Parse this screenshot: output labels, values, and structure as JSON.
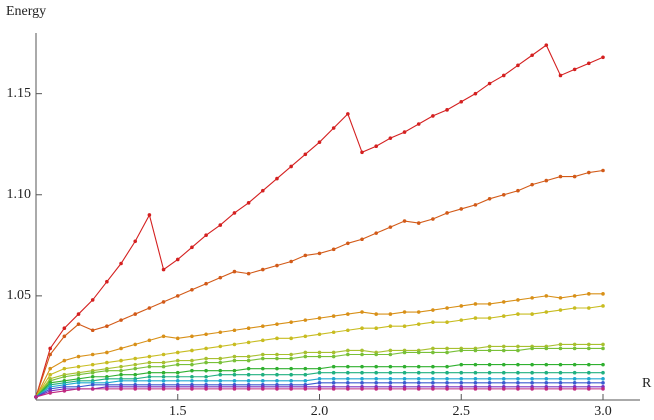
{
  "chart_data": {
    "type": "line",
    "ylabel": "Energy",
    "xlabel": "R",
    "xlim": [
      1.0,
      3.0
    ],
    "ylim": [
      0.9985,
      1.18
    ],
    "xticks": [
      1.5,
      {
        "value": 2,
        "label": "2.0"
      },
      2.5,
      {
        "value": 3,
        "label": "3.0"
      }
    ],
    "yticks": [
      1.05,
      {
        "value": 1.1,
        "label": "1.10"
      },
      1.15
    ],
    "x": [
      1.0,
      1.05,
      1.1,
      1.15,
      1.2,
      1.25,
      1.3,
      1.35,
      1.4,
      1.45,
      1.5,
      1.55,
      1.6,
      1.65,
      1.7,
      1.75,
      1.8,
      1.85,
      1.9,
      1.95,
      2.0,
      2.05,
      2.1,
      2.15,
      2.2,
      2.25,
      2.3,
      2.35,
      2.4,
      2.45,
      2.5,
      2.55,
      2.6,
      2.65,
      2.7,
      2.75,
      2.8,
      2.85,
      2.9,
      2.95,
      3.0
    ],
    "series": [
      {
        "color": "#d42020",
        "values": [
          1.0,
          1.024,
          1.034,
          1.041,
          1.048,
          1.057,
          1.066,
          1.077,
          1.09,
          1.063,
          1.068,
          1.074,
          1.08,
          1.085,
          1.091,
          1.096,
          1.102,
          1.108,
          1.114,
          1.12,
          1.126,
          1.133,
          1.14,
          1.121,
          1.124,
          1.128,
          1.131,
          1.135,
          1.139,
          1.142,
          1.146,
          1.15,
          1.155,
          1.159,
          1.164,
          1.169,
          1.174,
          1.159,
          1.162,
          1.165,
          1.168
        ]
      },
      {
        "color": "#d25a18",
        "values": [
          1.0,
          1.021,
          1.03,
          1.036,
          1.033,
          1.035,
          1.038,
          1.041,
          1.044,
          1.047,
          1.05,
          1.053,
          1.056,
          1.059,
          1.062,
          1.061,
          1.063,
          1.065,
          1.067,
          1.07,
          1.071,
          1.073,
          1.076,
          1.078,
          1.081,
          1.084,
          1.087,
          1.086,
          1.088,
          1.091,
          1.093,
          1.095,
          1.098,
          1.1,
          1.102,
          1.105,
          1.107,
          1.109,
          1.109,
          1.111,
          1.112
        ]
      },
      {
        "color": "#d89018",
        "values": [
          1.0,
          1.014,
          1.018,
          1.02,
          1.021,
          1.022,
          1.024,
          1.026,
          1.028,
          1.03,
          1.029,
          1.03,
          1.031,
          1.032,
          1.033,
          1.034,
          1.035,
          1.036,
          1.037,
          1.038,
          1.039,
          1.04,
          1.041,
          1.042,
          1.041,
          1.041,
          1.042,
          1.042,
          1.043,
          1.044,
          1.045,
          1.046,
          1.046,
          1.047,
          1.048,
          1.049,
          1.05,
          1.049,
          1.05,
          1.051,
          1.051
        ]
      },
      {
        "color": "#c8bc20",
        "values": [
          1.0,
          1.011,
          1.014,
          1.015,
          1.016,
          1.017,
          1.018,
          1.019,
          1.02,
          1.021,
          1.022,
          1.023,
          1.024,
          1.025,
          1.026,
          1.027,
          1.028,
          1.029,
          1.029,
          1.03,
          1.031,
          1.032,
          1.033,
          1.034,
          1.034,
          1.035,
          1.035,
          1.036,
          1.037,
          1.037,
          1.038,
          1.039,
          1.039,
          1.04,
          1.041,
          1.041,
          1.042,
          1.043,
          1.044,
          1.044,
          1.045
        ]
      },
      {
        "color": "#a8c030",
        "values": [
          1.0,
          1.009,
          1.011,
          1.012,
          1.013,
          1.014,
          1.015,
          1.016,
          1.017,
          1.017,
          1.018,
          1.018,
          1.019,
          1.019,
          1.02,
          1.02,
          1.021,
          1.021,
          1.021,
          1.022,
          1.022,
          1.022,
          1.023,
          1.023,
          1.022,
          1.023,
          1.023,
          1.023,
          1.024,
          1.024,
          1.024,
          1.024,
          1.025,
          1.025,
          1.025,
          1.025,
          1.025,
          1.026,
          1.026,
          1.026,
          1.026
        ]
      },
      {
        "color": "#78c038",
        "values": [
          1.0,
          1.008,
          1.01,
          1.011,
          1.012,
          1.013,
          1.013,
          1.014,
          1.015,
          1.015,
          1.016,
          1.016,
          1.017,
          1.017,
          1.018,
          1.018,
          1.019,
          1.019,
          1.019,
          1.02,
          1.02,
          1.02,
          1.021,
          1.021,
          1.021,
          1.021,
          1.022,
          1.022,
          1.022,
          1.022,
          1.023,
          1.023,
          1.023,
          1.023,
          1.023,
          1.024,
          1.024,
          1.024,
          1.024,
          1.024,
          1.024
        ]
      },
      {
        "color": "#30b030",
        "values": [
          1.0,
          1.007,
          1.008,
          1.009,
          1.01,
          1.01,
          1.011,
          1.011,
          1.012,
          1.012,
          1.012,
          1.013,
          1.013,
          1.013,
          1.013,
          1.014,
          1.014,
          1.014,
          1.014,
          1.014,
          1.014,
          1.015,
          1.015,
          1.015,
          1.015,
          1.015,
          1.015,
          1.015,
          1.015,
          1.015,
          1.016,
          1.016,
          1.016,
          1.016,
          1.016,
          1.016,
          1.016,
          1.016,
          1.016,
          1.016,
          1.016
        ]
      },
      {
        "color": "#20b080",
        "values": [
          1.0,
          1.006,
          1.007,
          1.008,
          1.008,
          1.009,
          1.009,
          1.009,
          1.01,
          1.01,
          1.01,
          1.01,
          1.01,
          1.011,
          1.011,
          1.011,
          1.011,
          1.011,
          1.011,
          1.011,
          1.012,
          1.012,
          1.012,
          1.012,
          1.012,
          1.012,
          1.012,
          1.012,
          1.012,
          1.012,
          1.012,
          1.012,
          1.012,
          1.012,
          1.012,
          1.012,
          1.012,
          1.012,
          1.012,
          1.012,
          1.012
        ]
      },
      {
        "color": "#20a8d0",
        "values": [
          1.0,
          1.005,
          1.006,
          1.007,
          1.007,
          1.007,
          1.008,
          1.008,
          1.008,
          1.008,
          1.008,
          1.008,
          1.008,
          1.008,
          1.008,
          1.008,
          1.008,
          1.008,
          1.008,
          1.008,
          1.009,
          1.009,
          1.009,
          1.009,
          1.009,
          1.009,
          1.009,
          1.009,
          1.009,
          1.009,
          1.009,
          1.009,
          1.009,
          1.009,
          1.009,
          1.009,
          1.009,
          1.009,
          1.009,
          1.009,
          1.009
        ]
      },
      {
        "color": "#3a5ad0",
        "values": [
          1.0,
          1.004,
          1.005,
          1.005,
          1.006,
          1.006,
          1.006,
          1.006,
          1.006,
          1.006,
          1.006,
          1.006,
          1.006,
          1.006,
          1.006,
          1.006,
          1.006,
          1.006,
          1.006,
          1.006,
          1.007,
          1.007,
          1.007,
          1.007,
          1.007,
          1.007,
          1.007,
          1.007,
          1.007,
          1.007,
          1.007,
          1.007,
          1.007,
          1.007,
          1.007,
          1.007,
          1.007,
          1.007,
          1.007,
          1.007,
          1.007
        ]
      },
      {
        "color": "#7a30c0",
        "values": [
          1.0,
          1.003,
          1.004,
          1.004,
          1.004,
          1.005,
          1.005,
          1.005,
          1.005,
          1.005,
          1.005,
          1.005,
          1.005,
          1.005,
          1.005,
          1.005,
          1.005,
          1.005,
          1.005,
          1.005,
          1.005,
          1.005,
          1.005,
          1.005,
          1.005,
          1.005,
          1.005,
          1.005,
          1.005,
          1.005,
          1.005,
          1.005,
          1.005,
          1.005,
          1.005,
          1.005,
          1.005,
          1.005,
          1.005,
          1.005,
          1.005
        ]
      },
      {
        "color": "#c02880",
        "values": [
          1.0,
          1.002,
          1.003,
          1.004,
          1.004,
          1.004,
          1.004,
          1.004,
          1.004,
          1.004,
          1.004,
          1.004,
          1.004,
          1.004,
          1.004,
          1.004,
          1.004,
          1.004,
          1.004,
          1.004,
          1.004,
          1.004,
          1.004,
          1.004,
          1.004,
          1.004,
          1.004,
          1.004,
          1.004,
          1.004,
          1.004,
          1.004,
          1.004,
          1.004,
          1.004,
          1.004,
          1.004,
          1.004,
          1.004,
          1.004,
          1.004
        ]
      }
    ]
  }
}
